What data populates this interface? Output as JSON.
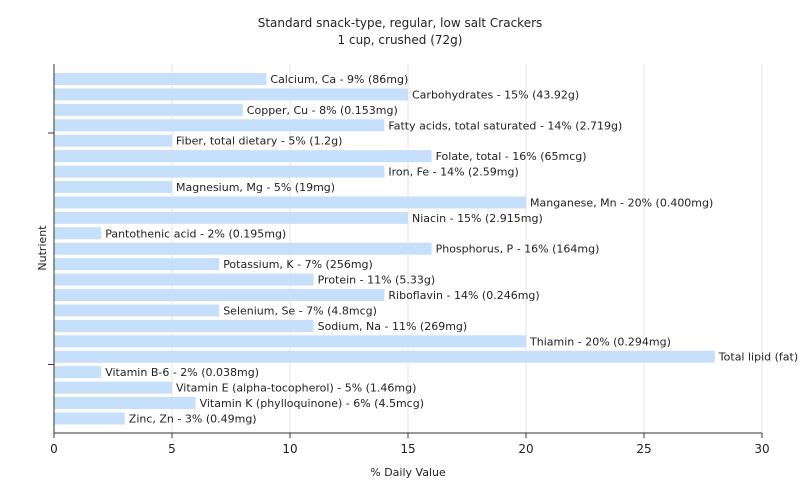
{
  "chart_data": {
    "type": "bar",
    "orientation": "horizontal",
    "title": "Standard snack-type, regular, low salt Crackers",
    "subtitle": "1 cup, crushed (72g)",
    "xlabel": "% Daily Value",
    "ylabel": "Nutrient",
    "xlim": [
      0,
      30
    ],
    "xticks": [
      0,
      5,
      10,
      15,
      20,
      25,
      30
    ],
    "grid": true,
    "bar_color": "#c6dffb",
    "categories": [
      "Calcium, Ca",
      "Carbohydrates",
      "Copper, Cu",
      "Fatty acids, total saturated",
      "Fiber, total dietary",
      "Folate, total",
      "Iron, Fe",
      "Magnesium, Mg",
      "Manganese, Mn",
      "Niacin",
      "Pantothenic acid",
      "Phosphorus, P",
      "Potassium, K",
      "Protein",
      "Riboflavin",
      "Selenium, Se",
      "Sodium, Na",
      "Thiamin",
      "Total lipid (fat)",
      "Vitamin B-6",
      "Vitamin E (alpha-tocopherol)",
      "Vitamin K (phylloquinone)",
      "Zinc, Zn"
    ],
    "values": [
      9,
      15,
      8,
      14,
      5,
      16,
      14,
      5,
      20,
      15,
      2,
      16,
      7,
      11,
      14,
      7,
      11,
      20,
      28,
      2,
      5,
      6,
      3
    ],
    "labels": [
      "Calcium, Ca - 9% (86mg)",
      "Carbohydrates - 15% (43.92g)",
      "Copper, Cu - 8% (0.153mg)",
      "Fatty acids, total saturated - 14% (2.719g)",
      "Fiber, total dietary - 5% (1.2g)",
      "Folate, total - 16% (65mcg)",
      "Iron, Fe - 14% (2.59mg)",
      "Magnesium, Mg - 5% (19mg)",
      "Manganese, Mn - 20% (0.400mg)",
      "Niacin - 15% (2.915mg)",
      "Pantothenic acid - 2% (0.195mg)",
      "Phosphorus, P - 16% (164mg)",
      "Potassium, K - 7% (256mg)",
      "Protein - 11% (5.33g)",
      "Riboflavin - 14% (0.246mg)",
      "Selenium, Se - 7% (4.8mcg)",
      "Sodium, Na - 11% (269mg)",
      "Thiamin - 20% (0.294mg)",
      "Total lipid (fat) - 28% (18.22g)",
      "Vitamin B-6 - 2% (0.038mg)",
      "Vitamin E (alpha-tocopherol) - 5% (1.46mg)",
      "Vitamin K (phylloquinone) - 6% (4.5mcg)",
      "Zinc, Zn - 3% (0.49mg)"
    ]
  }
}
